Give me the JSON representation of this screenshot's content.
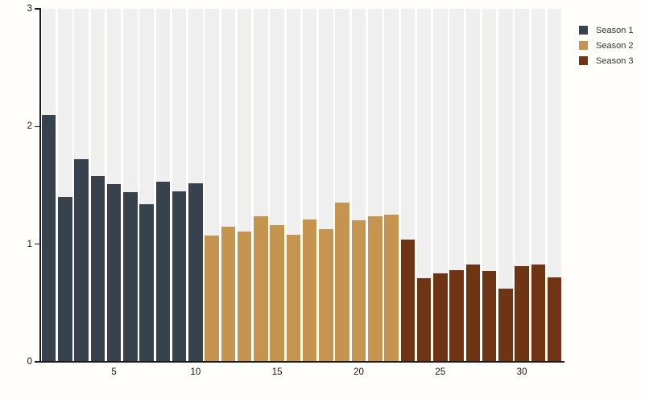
{
  "chart_data": {
    "type": "bar",
    "title": "",
    "xlabel": "",
    "ylabel": "",
    "ylim": [
      0,
      3
    ],
    "yticks": [
      0,
      1,
      2,
      3
    ],
    "xticks": [
      5,
      10,
      15,
      20,
      25,
      30
    ],
    "x_range": [
      1,
      32
    ],
    "grid": false,
    "plot_band_color": "#efefef",
    "axis_color": "#1b1b1b",
    "legend": {
      "position": "top-right",
      "entries": [
        "Season 1",
        "Season 2",
        "Season 3"
      ]
    },
    "series": [
      {
        "name": "Season 1",
        "color": "#37424c",
        "start_x": 1,
        "values": [
          2.1,
          1.4,
          1.72,
          1.58,
          1.51,
          1.44,
          1.34,
          1.53,
          1.45,
          1.52
        ]
      },
      {
        "name": "Season 2",
        "color": "#c5954f",
        "start_x": 11,
        "values": [
          1.07,
          1.15,
          1.11,
          1.24,
          1.16,
          1.08,
          1.21,
          1.13,
          1.35,
          1.2,
          1.24,
          1.25
        ]
      },
      {
        "name": "Season 3",
        "color": "#6e3413",
        "start_x": 23,
        "values": [
          1.04,
          0.71,
          0.75,
          0.78,
          0.83,
          0.77,
          0.62,
          0.81,
          0.83,
          0.72
        ]
      }
    ]
  }
}
